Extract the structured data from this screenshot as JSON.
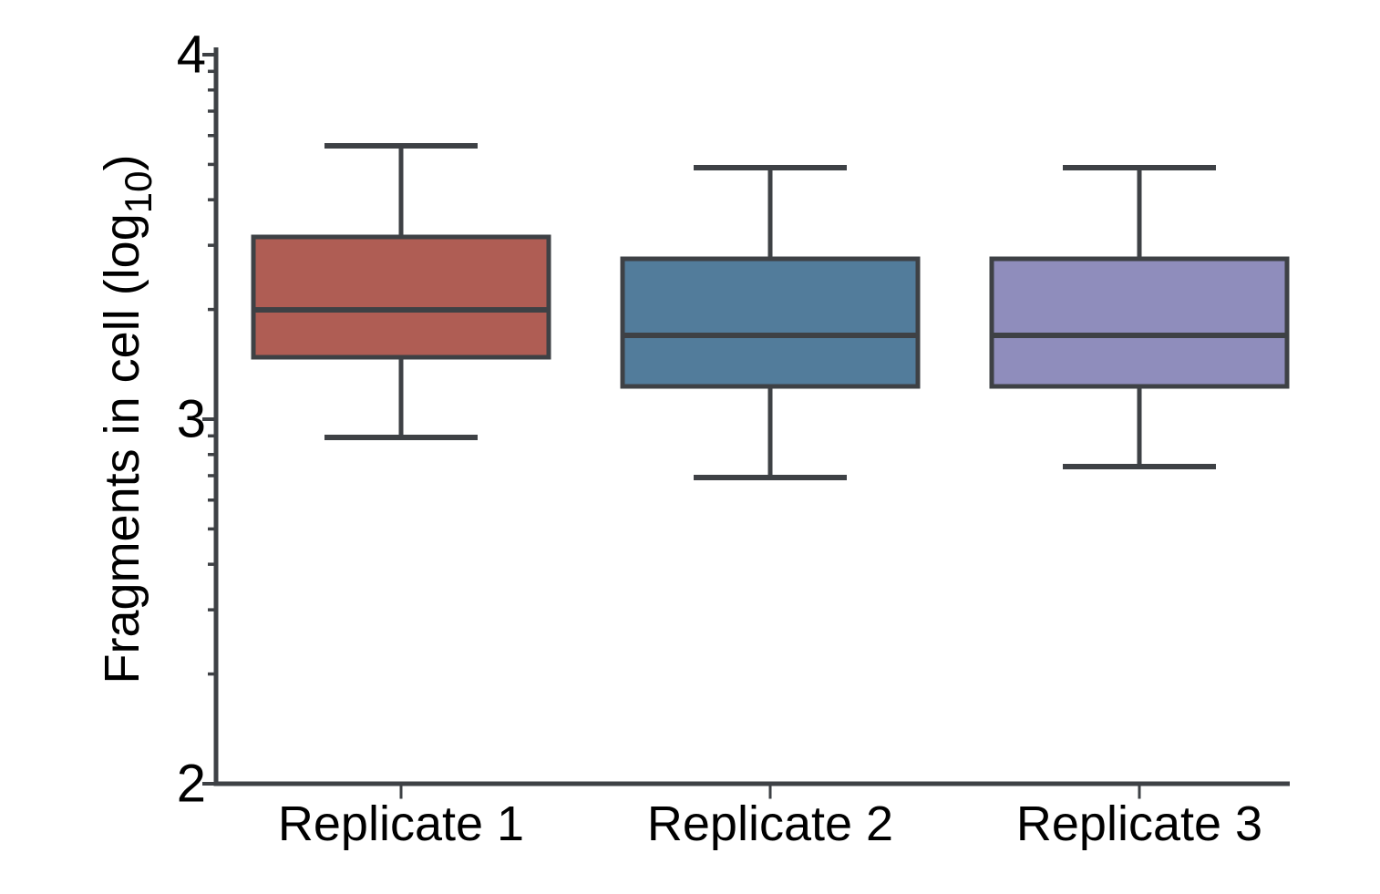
{
  "figure": {
    "background_color": "#ffffff"
  },
  "chart_data": {
    "type": "box",
    "title": "",
    "xlabel": "",
    "ylabel": {
      "prefix": "Fragments in cell (log",
      "subscript": "10",
      "suffix": ")"
    },
    "categories": [
      "Replicate 1",
      "Replicate 2",
      "Replicate 3"
    ],
    "y_axis": {
      "scale": "log10 (tick labels show exponent)",
      "ylim": [
        2,
        4
      ],
      "major_ticks": [
        4,
        3,
        2
      ],
      "major_tick_labels": [
        "4",
        "3",
        "2"
      ],
      "minor_tick_multipliers": [
        9,
        8,
        7,
        6,
        5,
        4,
        3,
        2
      ],
      "grid": false
    },
    "series": [
      {
        "name": "Replicate 1",
        "whisker_low": 2.95,
        "q1": 3.17,
        "median": 3.3,
        "q3": 3.5,
        "whisker_high": 3.75,
        "fill_color": "#AF5D54"
      },
      {
        "name": "Replicate 2",
        "whisker_low": 2.84,
        "q1": 3.09,
        "median": 3.23,
        "q3": 3.44,
        "whisker_high": 3.69,
        "fill_color": "#527C9B"
      },
      {
        "name": "Replicate 3",
        "whisker_low": 2.87,
        "q1": 3.09,
        "median": 3.23,
        "q3": 3.44,
        "whisker_high": 3.69,
        "fill_color": "#8F8DBC"
      }
    ],
    "legend": "none",
    "stroke_color": "#3E4145",
    "text_color": "#000000"
  }
}
